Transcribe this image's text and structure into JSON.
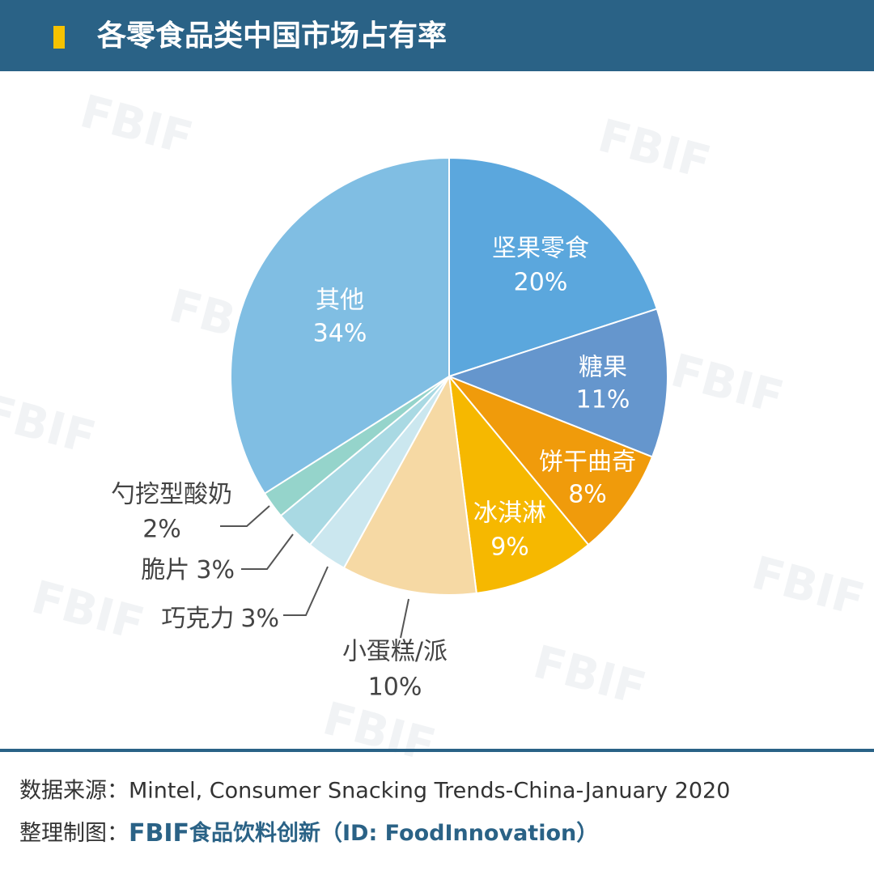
{
  "chart_data": {
    "type": "pie",
    "title": "各零食品类中国市场占有率",
    "categories": [
      "坚果零食",
      "糖果",
      "饼干曲奇",
      "冰淇淋",
      "小蛋糕/派",
      "巧克力",
      "脆片",
      "勺挖型酸奶",
      "其他"
    ],
    "values": [
      20,
      11,
      8,
      9,
      10,
      3,
      3,
      2,
      34
    ],
    "value_labels": [
      "20%",
      "11%",
      "8%",
      "9%",
      "10%",
      "3%",
      "3%",
      "2%",
      "34%"
    ],
    "colors": [
      "#5ba7dd",
      "#6596cd",
      "#f09b0b",
      "#f6b800",
      "#f6d9a4",
      "#cbe7ef",
      "#a9d9e3",
      "#95d4cb",
      "#80bee3"
    ]
  },
  "watermark": "FBIF",
  "footer": {
    "source": "数据来源：Mintel, Consumer Snacking Trends-China-January 2020",
    "credit_prefix": "整理制图：",
    "credit_logo": "FBIF",
    "credit_text": "食品饮料创新（ID: FoodInnovation）"
  }
}
